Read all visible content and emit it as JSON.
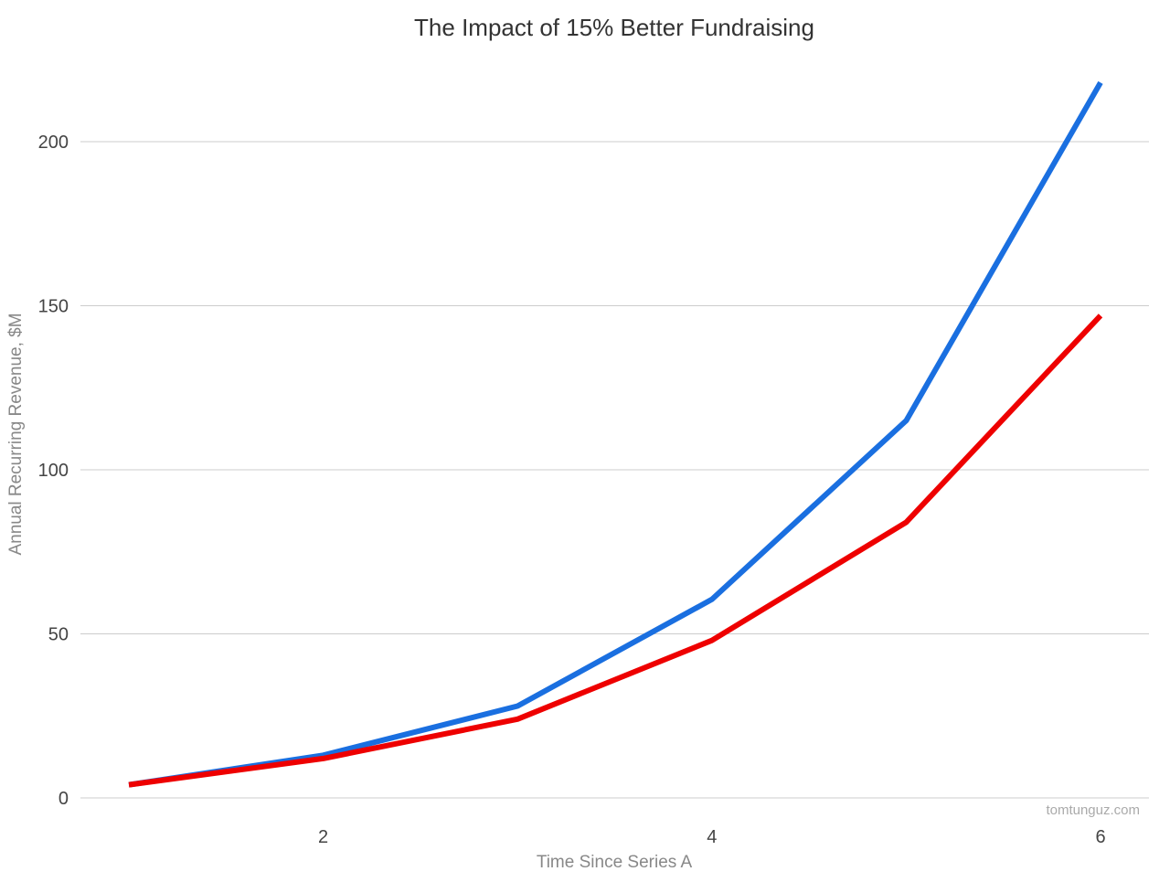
{
  "chart_data": {
    "type": "line",
    "title": "The Impact of 15% Better Fundraising",
    "xlabel": "Time Since Series A",
    "ylabel": "Annual Recurring Revenue, $M",
    "x": [
      1,
      2,
      3,
      4,
      5,
      6
    ],
    "xlim": [
      1,
      6
    ],
    "ylim": [
      0,
      220
    ],
    "x_ticks": [
      2,
      4,
      6
    ],
    "y_ticks": [
      0,
      50,
      100,
      150,
      200
    ],
    "grid": true,
    "legend": "none",
    "watermark": "tomtunguz.com",
    "series": [
      {
        "color": "#1a6fe0",
        "values": [
          4,
          13,
          28,
          60.5,
          115,
          218
        ]
      },
      {
        "color": "#ee0000",
        "values": [
          4,
          12,
          24,
          48,
          84,
          147
        ]
      }
    ]
  },
  "colors": {
    "gridline": "#cccccc",
    "axis_text": "#444444",
    "axis_title": "#888888",
    "title_text": "#333333",
    "watermark": "#aaaaaa"
  }
}
